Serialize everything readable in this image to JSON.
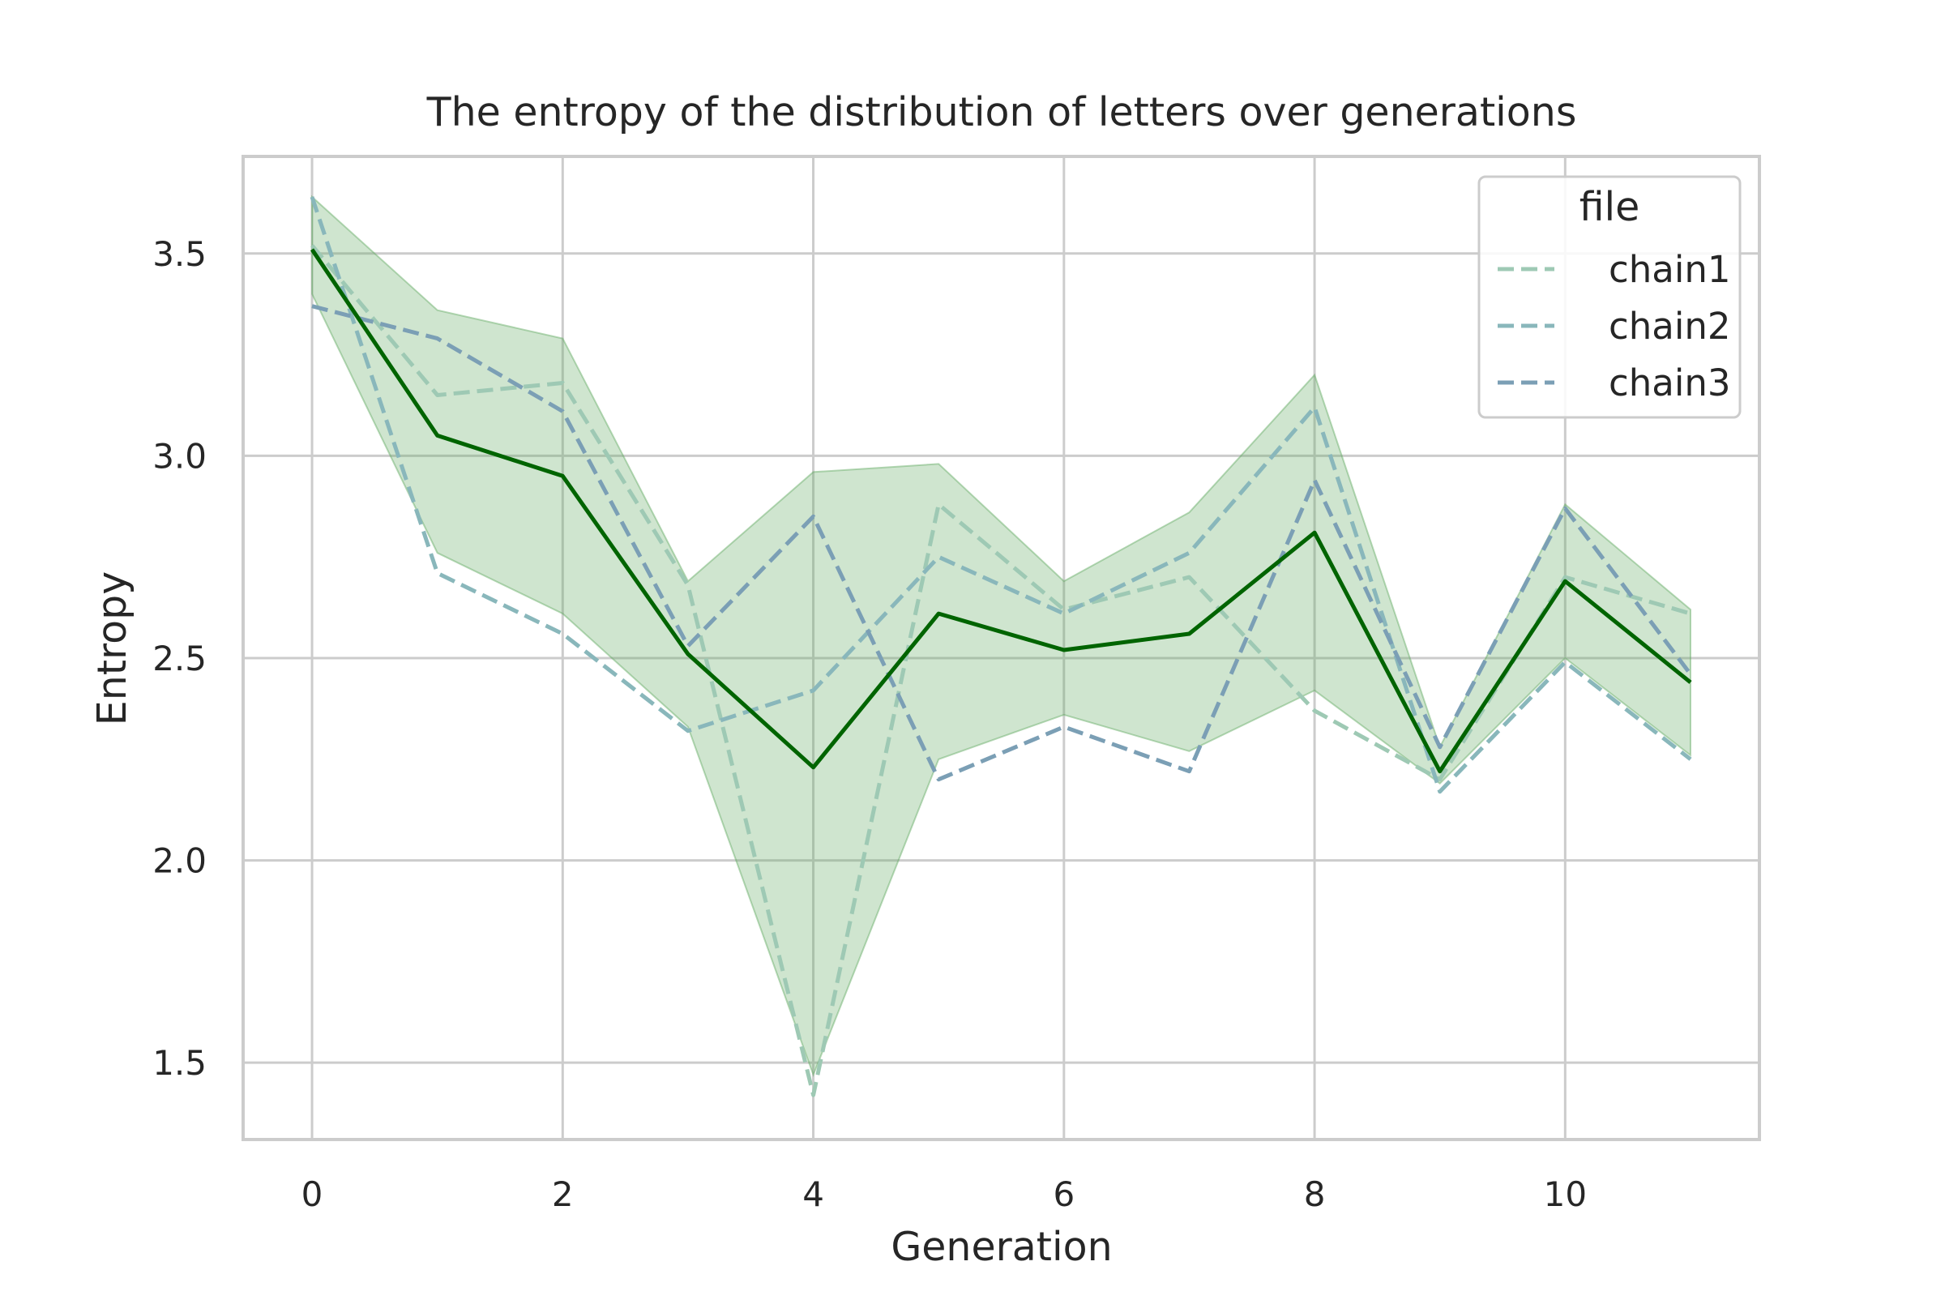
{
  "chart_data": {
    "type": "line",
    "title": "The entropy of the distribution of letters over generations",
    "xlabel": "Generation",
    "ylabel": "Entropy",
    "xlim": [
      -0.55,
      11.55
    ],
    "ylim": [
      1.31,
      3.74
    ],
    "xticks": [
      0,
      2,
      4,
      6,
      8,
      10
    ],
    "yticks": [
      1.5,
      2.0,
      2.5,
      3.0,
      3.5
    ],
    "grid": true,
    "x": [
      0,
      1,
      2,
      3,
      4,
      5,
      6,
      7,
      8,
      9,
      10,
      11
    ],
    "series": [
      {
        "name": "chain1",
        "color": "#9ec9b4",
        "style": "dashed",
        "values": [
          3.52,
          3.15,
          3.18,
          2.68,
          1.42,
          2.88,
          2.62,
          2.7,
          2.37,
          2.2,
          2.7,
          2.61
        ]
      },
      {
        "name": "chain2",
        "color": "#89b7bb",
        "style": "dashed",
        "values": [
          3.64,
          2.71,
          2.56,
          2.32,
          2.42,
          2.75,
          2.61,
          2.76,
          3.12,
          2.17,
          2.49,
          2.25
        ]
      },
      {
        "name": "chain3",
        "color": "#7b9fb5",
        "style": "dashed",
        "values": [
          3.37,
          3.29,
          3.11,
          2.53,
          2.85,
          2.2,
          2.33,
          2.22,
          2.94,
          2.28,
          2.87,
          2.46
        ]
      }
    ],
    "mean": {
      "color": "#006400",
      "values": [
        3.51,
        3.05,
        2.95,
        2.51,
        2.23,
        2.61,
        2.52,
        2.56,
        2.81,
        2.22,
        2.69,
        2.44
      ]
    },
    "band": {
      "color": "#5fa860",
      "opacity": 0.3,
      "lower": [
        3.4,
        2.76,
        2.61,
        2.33,
        1.47,
        2.25,
        2.36,
        2.27,
        2.42,
        2.19,
        2.5,
        2.26
      ],
      "upper": [
        3.64,
        3.36,
        3.29,
        2.69,
        2.96,
        2.98,
        2.69,
        2.86,
        3.2,
        2.28,
        2.88,
        2.62
      ]
    },
    "legend": {
      "title": "file",
      "placement": "top-right"
    }
  }
}
